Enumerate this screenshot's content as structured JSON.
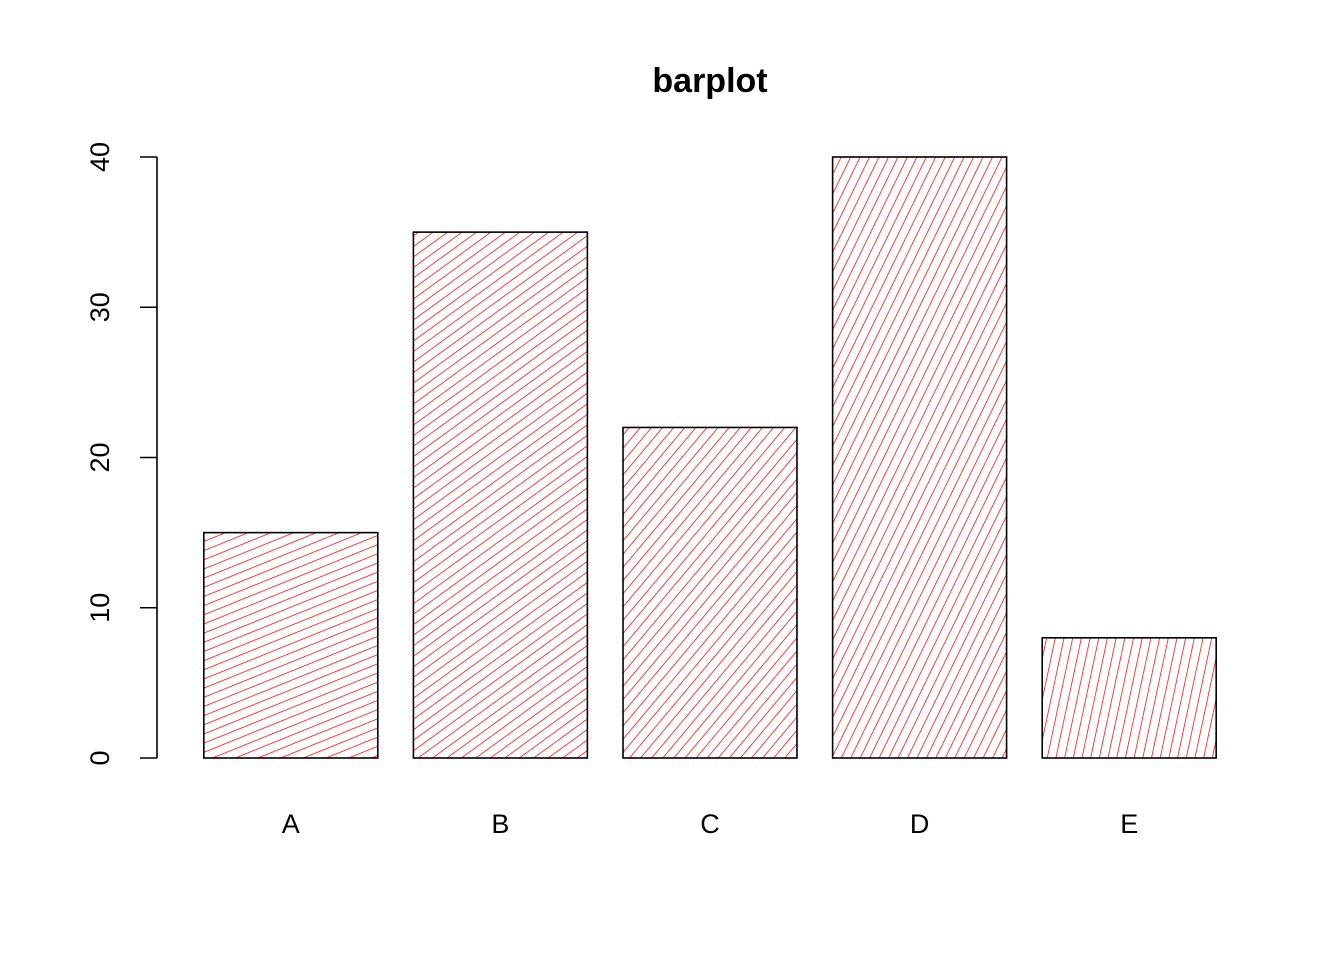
{
  "chart_data": {
    "type": "bar",
    "title": "barplot",
    "xlabel": "",
    "ylabel": "",
    "categories": [
      "A",
      "B",
      "C",
      "D",
      "E"
    ],
    "values": [
      15,
      35,
      22,
      40,
      8
    ],
    "ylim": [
      0,
      40
    ],
    "yticks": [
      0,
      10,
      20,
      30,
      40
    ],
    "fill_style": "hatched",
    "hatch_angles_deg": [
      22,
      36,
      50,
      64,
      78
    ],
    "hatch_color": "#ff0000",
    "border_color": "#000000",
    "grid": false,
    "legend": "none"
  }
}
